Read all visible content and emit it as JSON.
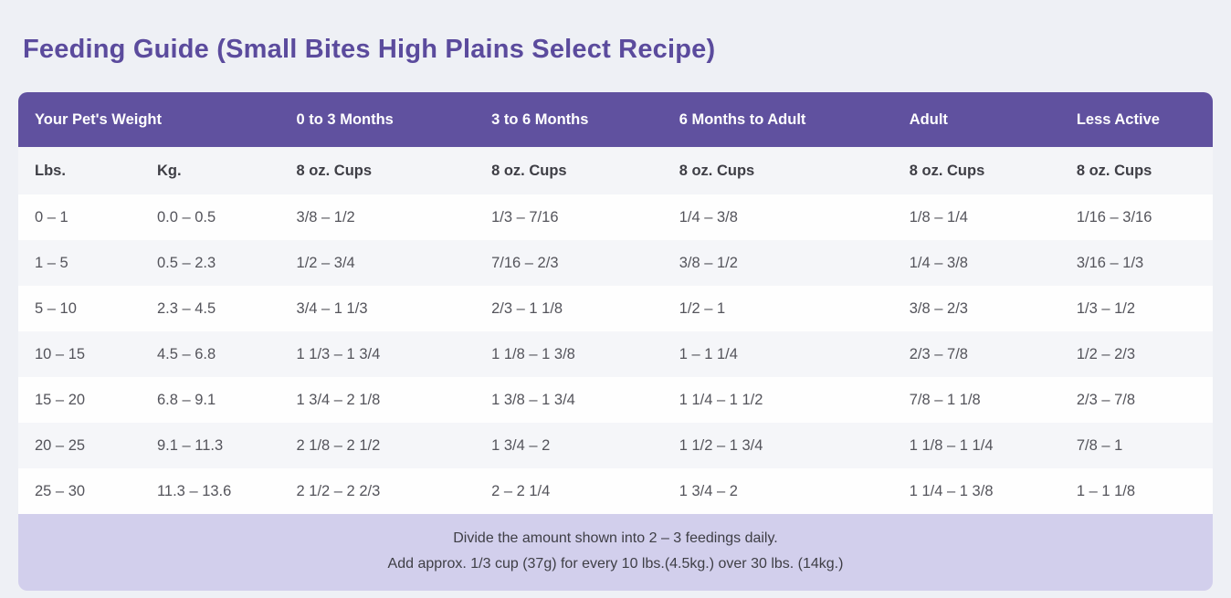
{
  "page": {
    "title": "Feeding Guide (Small Bites High Plains Select Recipe)"
  },
  "colors": {
    "page_background": "#eef0f5",
    "header_purple": "#60519f",
    "footer_light_purple": "#d2cfec",
    "title_purple": "#5b4b9d",
    "row_alt_gray": "#f5f6f9",
    "body_text": "#54545b"
  },
  "table": {
    "header_groups": [
      "Your Pet's Weight",
      "0 to 3 Months",
      "3 to 6 Months",
      "6 Months to Adult",
      "Adult",
      "Less Active"
    ],
    "subheaders": [
      "Lbs.",
      "Kg.",
      "8 oz. Cups",
      "8 oz. Cups",
      "8 oz. Cups",
      "8 oz. Cups",
      "8 oz. Cups"
    ],
    "rows": [
      [
        "0 – 1",
        "0.0 – 0.5",
        "3/8 – 1/2",
        "1/3 – 7/16",
        "1/4 – 3/8",
        "1/8 – 1/4",
        "1/16 – 3/16"
      ],
      [
        "1 – 5",
        "0.5 – 2.3",
        "1/2 – 3/4",
        "7/16 – 2/3",
        "3/8 – 1/2",
        "1/4 – 3/8",
        "3/16 – 1/3"
      ],
      [
        "5 – 10",
        "2.3 – 4.5",
        "3/4 – 1 1/3",
        "2/3 – 1 1/8",
        "1/2 – 1",
        "3/8 – 2/3",
        "1/3 – 1/2"
      ],
      [
        "10 – 15",
        "4.5 – 6.8",
        "1 1/3 – 1 3/4",
        "1 1/8 – 1 3/8",
        "1 – 1 1/4",
        "2/3 – 7/8",
        "1/2 – 2/3"
      ],
      [
        "15 – 20",
        "6.8 – 9.1",
        "1 3/4 – 2 1/8",
        "1 3/8 – 1 3/4",
        "1 1/4 – 1 1/2",
        "7/8 – 1 1/8",
        "2/3 – 7/8"
      ],
      [
        "20 – 25",
        "9.1 – 11.3",
        "2 1/8 – 2 1/2",
        "1 3/4 – 2",
        "1 1/2 – 1 3/4",
        "1 1/8 – 1 1/4",
        "7/8 – 1"
      ],
      [
        "25 – 30",
        "11.3 – 13.6",
        "2 1/2 – 2 2/3",
        "2 – 2 1/4",
        "1 3/4 – 2",
        "1 1/4 – 1 3/8",
        "1 – 1 1/8"
      ]
    ],
    "footer_lines": [
      "Divide the amount shown into 2 – 3 feedings daily.",
      "Add approx. 1/3 cup (37g) for every 10 lbs.(4.5kg.) over 30 lbs. (14kg.)"
    ]
  }
}
